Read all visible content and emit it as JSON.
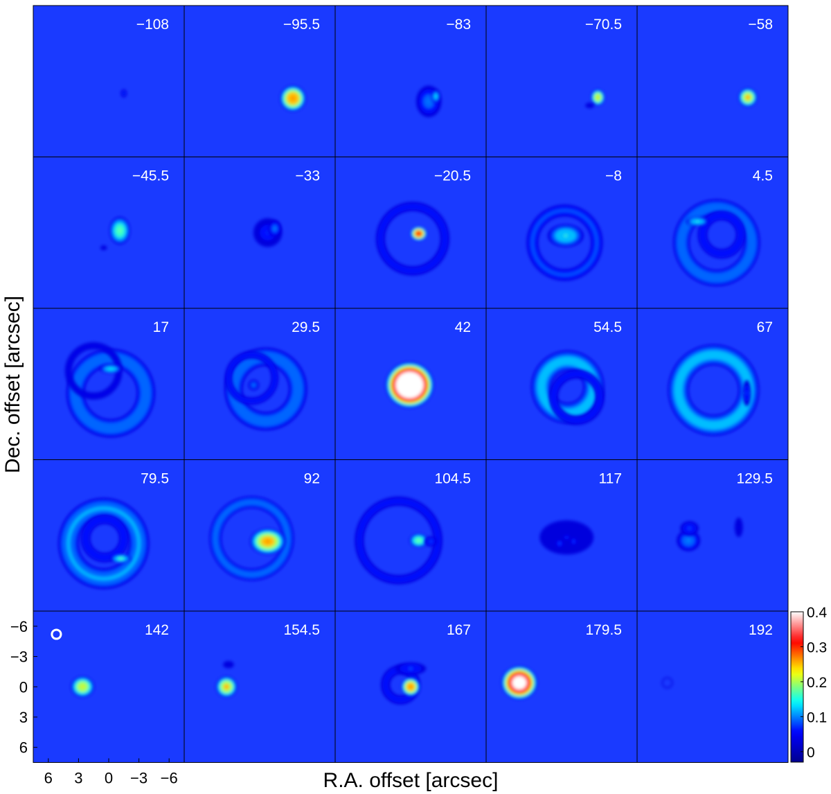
{
  "chart_data": {
    "type": "heatmap",
    "title": "",
    "xlabel": "R.A. offset [arcsec]",
    "ylabel": "Dec. offset [arcsec]",
    "xlim": [
      7.5,
      -7.5
    ],
    "ylim": [
      -7.5,
      7.5
    ],
    "x_ticks": [
      "6",
      "3",
      "0",
      "−3",
      "−6"
    ],
    "y_ticks": [
      "6",
      "3",
      "0",
      "−3",
      "−6"
    ],
    "x_tick_values": [
      6,
      3,
      0,
      -3,
      -6
    ],
    "y_tick_values": [
      6,
      3,
      0,
      -3,
      -6
    ],
    "colorbar": {
      "min": -0.03,
      "max": 0.4,
      "ticks": [
        "0.4",
        "0.3",
        "0.2",
        "0.1",
        "0"
      ],
      "tick_values": [
        0.4,
        0.3,
        0.2,
        0.1,
        0
      ],
      "colormap": [
        "#00008f",
        "#0000ff",
        "#00ffff",
        "#ffff00",
        "#ff0000",
        "#ffffff"
      ]
    },
    "background_color": "#1a3aff",
    "beam": {
      "x": 5.2,
      "y": -5.2,
      "major": 0.9,
      "minor": 0.9
    },
    "grid": {
      "rows": 5,
      "cols": 5
    },
    "panels": [
      {
        "label": "−108",
        "components": [
          {
            "type": "blob",
            "x": -1.5,
            "y": 1.2,
            "rx": 0.3,
            "ry": 0.4,
            "peak": 0.08
          }
        ]
      },
      {
        "label": "−95.5",
        "components": [
          {
            "type": "blob",
            "x": -3.3,
            "y": 1.7,
            "rx": 1.1,
            "ry": 1.1,
            "peak": 0.3
          }
        ]
      },
      {
        "label": "−83",
        "components": [
          {
            "type": "blob",
            "x": -1.8,
            "y": 2.0,
            "rx": 1.2,
            "ry": 1.5,
            "peak": 0.1
          },
          {
            "type": "blob",
            "x": -2.5,
            "y": 1.5,
            "rx": 0.4,
            "ry": 0.6,
            "peak": 0.14
          }
        ]
      },
      {
        "label": "−70.5",
        "components": [
          {
            "type": "blob",
            "x": -3.6,
            "y": 1.6,
            "rx": 0.6,
            "ry": 0.7,
            "peak": 0.25
          },
          {
            "type": "blob",
            "x": -2.8,
            "y": 2.4,
            "rx": 0.5,
            "ry": 0.3,
            "peak": 0.06
          }
        ]
      },
      {
        "label": "−58",
        "components": [
          {
            "type": "blob",
            "x": -3.5,
            "y": 1.6,
            "rx": 0.8,
            "ry": 0.8,
            "peak": 0.26
          }
        ]
      },
      {
        "label": "−45.5",
        "components": [
          {
            "type": "blob",
            "x": -1.1,
            "y": -0.2,
            "rx": 0.9,
            "ry": 1.2,
            "peak": 0.19
          },
          {
            "type": "blob",
            "x": 0.5,
            "y": 1.5,
            "rx": 0.4,
            "ry": 0.3,
            "peak": 0.05
          }
        ]
      },
      {
        "label": "−33",
        "components": [
          {
            "type": "blob",
            "x": -0.8,
            "y": 0.0,
            "rx": 1.5,
            "ry": 1.5,
            "peak": 0.07
          },
          {
            "type": "blob",
            "x": -1.5,
            "y": -0.4,
            "rx": 0.6,
            "ry": 0.8,
            "peak": 0.1
          }
        ]
      },
      {
        "label": "−20.5",
        "components": [
          {
            "type": "ring",
            "x": -0.2,
            "y": 0.6,
            "r": 3.2,
            "width": 0.5,
            "peak": 0.07
          },
          {
            "type": "blob",
            "x": -0.8,
            "y": 0.1,
            "rx": 0.7,
            "ry": 0.6,
            "peak": 0.33
          }
        ]
      },
      {
        "label": "−8",
        "components": [
          {
            "type": "ring",
            "x": -0.3,
            "y": 1.0,
            "r": 3.2,
            "width": 0.6,
            "peak": 0.09
          },
          {
            "type": "blob",
            "x": -0.4,
            "y": 0.3,
            "rx": 1.6,
            "ry": 1.0,
            "peak": 0.16
          }
        ]
      },
      {
        "label": "4.5",
        "components": [
          {
            "type": "ring",
            "x": -0.4,
            "y": 1.0,
            "r": 3.5,
            "width": 0.8,
            "peak": 0.11
          },
          {
            "type": "ring",
            "x": -0.9,
            "y": 0.2,
            "r": 1.9,
            "width": 0.5,
            "peak": 0.08
          },
          {
            "type": "blob",
            "x": 1.5,
            "y": -1.1,
            "rx": 1.0,
            "ry": 0.4,
            "peak": 0.16
          }
        ]
      },
      {
        "label": "17",
        "components": [
          {
            "type": "ring",
            "x": -0.2,
            "y": 0.9,
            "r": 3.5,
            "width": 0.9,
            "peak": 0.11
          },
          {
            "type": "ring",
            "x": 1.5,
            "y": -1.3,
            "r": 2.5,
            "width": 0.4,
            "peak": 0.06
          },
          {
            "type": "blob",
            "x": -0.2,
            "y": -1.5,
            "rx": 1.0,
            "ry": 0.4,
            "peak": 0.15
          }
        ]
      },
      {
        "label": "29.5",
        "components": [
          {
            "type": "ring",
            "x": -0.6,
            "y": 0.5,
            "r": 3.2,
            "width": 0.9,
            "peak": 0.11
          },
          {
            "type": "ring",
            "x": 0.8,
            "y": -0.6,
            "r": 2.3,
            "width": 0.4,
            "peak": 0.07
          },
          {
            "type": "blob",
            "x": 0.6,
            "y": 0.1,
            "rx": 0.5,
            "ry": 0.5,
            "peak": 0.1
          }
        ]
      },
      {
        "label": "42",
        "components": [
          {
            "type": "blob",
            "x": 0.1,
            "y": 0.1,
            "rx": 2.0,
            "ry": 1.9,
            "peak": 0.55
          }
        ]
      },
      {
        "label": "54.5",
        "components": [
          {
            "type": "ring",
            "x": -0.6,
            "y": 0.3,
            "r": 2.6,
            "width": 1.0,
            "peak": 0.13
          },
          {
            "type": "ring",
            "x": -1.5,
            "y": 1.3,
            "r": 2.3,
            "width": 0.5,
            "peak": 0.07
          }
        ]
      },
      {
        "label": "67",
        "components": [
          {
            "type": "ring",
            "x": -0.1,
            "y": 0.6,
            "r": 3.5,
            "width": 1.0,
            "peak": 0.13
          },
          {
            "type": "blob",
            "x": -3.4,
            "y": 0.9,
            "rx": 0.4,
            "ry": 1.3,
            "peak": 0.08
          }
        ]
      },
      {
        "label": "79.5",
        "components": [
          {
            "type": "ring",
            "x": 0.5,
            "y": 0.8,
            "r": 3.5,
            "width": 1.0,
            "peak": 0.12
          },
          {
            "type": "ring",
            "x": 0.4,
            "y": 0.3,
            "r": 1.9,
            "width": 0.5,
            "peak": 0.08
          },
          {
            "type": "blob",
            "x": -1.2,
            "y": 2.3,
            "rx": 0.9,
            "ry": 0.4,
            "peak": 0.17
          }
        ]
      },
      {
        "label": "92",
        "components": [
          {
            "type": "ring",
            "x": 0.8,
            "y": 0.3,
            "r": 3.6,
            "width": 0.6,
            "peak": 0.1
          },
          {
            "type": "blob",
            "x": -0.8,
            "y": 0.6,
            "rx": 1.5,
            "ry": 1.1,
            "peak": 0.28
          }
        ]
      },
      {
        "label": "104.5",
        "components": [
          {
            "type": "ring",
            "x": 1.2,
            "y": 0.5,
            "r": 3.9,
            "width": 0.5,
            "peak": 0.07
          },
          {
            "type": "blob",
            "x": -0.8,
            "y": 0.5,
            "rx": 0.8,
            "ry": 0.6,
            "peak": 0.2
          },
          {
            "type": "blob",
            "x": -2.0,
            "y": 0.6,
            "rx": 0.6,
            "ry": 0.5,
            "peak": 0.09
          }
        ]
      },
      {
        "label": "117",
        "components": [
          {
            "type": "blob",
            "x": -0.5,
            "y": 0.2,
            "rx": 3.0,
            "ry": 1.9,
            "peak": 0.06
          },
          {
            "type": "blob",
            "x": 0.2,
            "y": 0.8,
            "rx": 0.4,
            "ry": 0.4,
            "peak": 0.09
          },
          {
            "type": "blob",
            "x": -1.2,
            "y": 0.6,
            "rx": 0.4,
            "ry": 0.4,
            "peak": 0.08
          }
        ]
      },
      {
        "label": "129.5",
        "components": [
          {
            "type": "blob",
            "x": 2.4,
            "y": 0.5,
            "rx": 1.1,
            "ry": 1.0,
            "peak": 0.11
          },
          {
            "type": "blob",
            "x": 2.3,
            "y": -0.7,
            "rx": 0.9,
            "ry": 0.7,
            "peak": 0.09
          },
          {
            "type": "blob",
            "x": -2.6,
            "y": -0.8,
            "rx": 0.5,
            "ry": 1.2,
            "peak": 0.05
          }
        ]
      },
      {
        "label": "142",
        "components": [
          {
            "type": "blob",
            "x": 2.6,
            "y": 0.0,
            "rx": 1.0,
            "ry": 0.9,
            "peak": 0.24
          }
        ]
      },
      {
        "label": "154.5",
        "components": [
          {
            "type": "blob",
            "x": 3.3,
            "y": 0.0,
            "rx": 0.9,
            "ry": 0.9,
            "peak": 0.26
          },
          {
            "type": "blob",
            "x": 3.1,
            "y": -2.2,
            "rx": 0.6,
            "ry": 0.4,
            "peak": 0.06
          }
        ]
      },
      {
        "label": "167",
        "components": [
          {
            "type": "ring",
            "x": 1.0,
            "y": -0.2,
            "r": 1.5,
            "width": 0.5,
            "peak": 0.07
          },
          {
            "type": "blob",
            "x": 0.0,
            "y": 0.0,
            "rx": 0.8,
            "ry": 0.8,
            "peak": 0.3
          },
          {
            "type": "blob",
            "x": 0.0,
            "y": -1.8,
            "rx": 1.5,
            "ry": 0.6,
            "peak": 0.09
          }
        ]
      },
      {
        "label": "179.5",
        "components": [
          {
            "type": "blob",
            "x": 4.2,
            "y": -0.4,
            "rx": 1.5,
            "ry": 1.4,
            "peak": 0.45
          }
        ]
      },
      {
        "label": "192",
        "components": [
          {
            "type": "ring",
            "x": 4.5,
            "y": -0.4,
            "r": 0.5,
            "width": 0.3,
            "peak": 0.03
          }
        ]
      }
    ]
  }
}
